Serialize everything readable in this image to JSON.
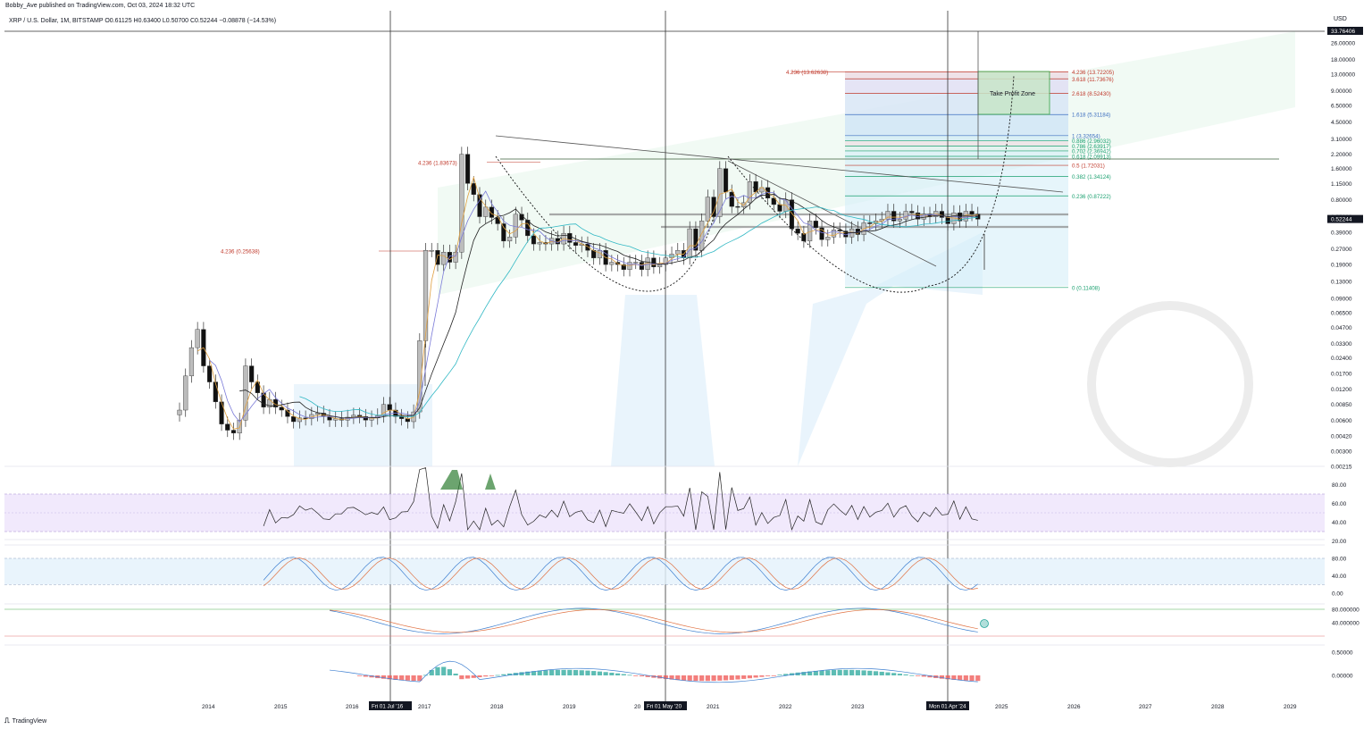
{
  "header": {
    "published": "Bobby_Ave published on TradingView.com, Oct 03, 2024 18:32 UTC",
    "symbol_line": "XRP / U.S. Dollar, 1M, BITSTAMP  O0.61125  H0.63400  L0.50700  C0.52244  −0.08878 (−14.53%)",
    "currency": "USD"
  },
  "footer": {
    "brand": "TradingView",
    "brand_icon": "tradingview-logo-icon"
  },
  "colors": {
    "bull_body": "#bdbdbd",
    "bear_body": "#111111",
    "fib_red": "#c0392b",
    "fib_green": "#1aa06f",
    "fib_blue": "#3d6fc0",
    "channel_fill": "#dff3e6",
    "cloud_fill": "#e3f1fb",
    "tp_zone": "#3da84a",
    "rsi_band": "#ede4fb",
    "stoch_band": "#e3f1fb",
    "macd_up": "#26a69a",
    "macd_down": "#ef5350"
  },
  "chart_data": {
    "type": "candlestick",
    "title": "XRP / U.S. Dollar, 1M, BITSTAMP",
    "y_scale": "log",
    "ylim": [
      0.00215,
      33.76406
    ],
    "price_ticks": [
      "26.00000",
      "18.00000",
      "13.00000",
      "9.00000",
      "6.50000",
      "4.50000",
      "3.10000",
      "2.20000",
      "1.60000",
      "1.15000",
      "0.80000",
      "0.55000",
      "0.39000",
      "0.27000",
      "0.19000",
      "0.13000",
      "0.09000",
      "0.06500",
      "0.04700",
      "0.03300",
      "0.02400",
      "0.01700",
      "0.01200",
      "0.00850",
      "0.00600",
      "0.00420",
      "0.00300",
      "0.00215"
    ],
    "top_price_label": "33.76406",
    "current_price_label": "0.52244",
    "x_ticks": [
      "2014",
      "2015",
      "2016",
      "2017",
      "2018",
      "2019",
      "20",
      "2021",
      "2022",
      "2023",
      "2025",
      "2026",
      "2027",
      "2028",
      "2029"
    ],
    "date_markers": [
      "Fri 01 Jul '16",
      "Fri 01 May '20",
      "Mon 01 Apr '24"
    ],
    "monthly_closes": [
      0.0075,
      0.016,
      0.03,
      0.045,
      0.02,
      0.014,
      0.009,
      0.0055,
      0.0048,
      0.0045,
      0.006,
      0.02,
      0.014,
      0.011,
      0.008,
      0.0095,
      0.008,
      0.0075,
      0.0065,
      0.0058,
      0.0063,
      0.0062,
      0.0068,
      0.007,
      0.0065,
      0.006,
      0.0062,
      0.006,
      0.0064,
      0.0067,
      0.0065,
      0.006,
      0.0063,
      0.0066,
      0.0085,
      0.0075,
      0.0065,
      0.0062,
      0.0058,
      0.0072,
      0.035,
      0.26,
      0.26,
      0.19,
      0.25,
      0.2,
      0.25,
      2.2,
      1.15,
      0.9,
      0.55,
      0.68,
      0.54,
      0.47,
      0.32,
      0.35,
      0.58,
      0.51,
      0.36,
      0.3,
      0.31,
      0.3,
      0.34,
      0.3,
      0.38,
      0.31,
      0.29,
      0.3,
      0.26,
      0.22,
      0.26,
      0.19,
      0.2,
      0.19,
      0.17,
      0.2,
      0.2,
      0.17,
      0.22,
      0.18,
      0.19,
      0.22,
      0.24,
      0.26,
      0.22,
      0.42,
      0.26,
      0.5,
      0.85,
      0.55,
      1.6,
      0.95,
      0.69,
      0.68,
      0.75,
      1.2,
      0.95,
      1.05,
      0.83,
      0.72,
      0.62,
      0.8,
      0.42,
      0.38,
      0.32,
      0.5,
      0.43,
      0.33,
      0.35,
      0.41,
      0.4,
      0.35,
      0.42,
      0.37,
      0.48,
      0.47,
      0.5,
      0.52,
      0.62,
      0.5,
      0.52,
      0.62,
      0.6,
      0.52,
      0.58,
      0.55,
      0.62,
      0.54,
      0.47,
      0.6,
      0.5,
      0.62,
      0.58,
      0.52
    ],
    "fib_levels": [
      {
        "label": "4.236 (13.72205)",
        "price": 13.72205
      },
      {
        "label": "3.618 (11.73676)",
        "price": 11.73676
      },
      {
        "label": "2.618 (8.52430)",
        "price": 8.5243
      },
      {
        "label": "1.618 (5.31184)",
        "price": 5.31184
      },
      {
        "label": "1 (3.32654)",
        "price": 3.32654
      },
      {
        "label": "0.886 (2.96032)",
        "price": 2.96032
      },
      {
        "label": "0.786 (2.63917)",
        "price": 2.63917
      },
      {
        "label": "0.702 (2.36942)",
        "price": 2.36942
      },
      {
        "label": "0.618 (2.09913)",
        "price": 2.09913
      },
      {
        "label": "0.5 (1.72031)",
        "price": 1.72031
      },
      {
        "label": "0.382 (1.34124)",
        "price": 1.34124
      },
      {
        "label": "0.236 (0.87222)",
        "price": 0.87222
      },
      {
        "label": "0 (0.11408)",
        "price": 0.11408
      }
    ],
    "fib_left_labels": [
      "4.236 (13.62638)",
      "4.236 (1.83673)",
      "4.236 (0.25638)"
    ],
    "annotations": [
      "Take Profit Zone"
    ],
    "rsi": {
      "ticks": [
        "80.00",
        "60.00",
        "40.00",
        "20.00"
      ],
      "overbought": 70,
      "oversold": 30
    },
    "stoch_rsi": {
      "ticks": [
        "80.00",
        "40.00",
        "0.00"
      ]
    },
    "momentum": {
      "ticks": [
        "80.000000",
        "40.000000"
      ]
    },
    "macd": {
      "ticks": [
        "0.50000",
        "0.00000"
      ]
    }
  }
}
